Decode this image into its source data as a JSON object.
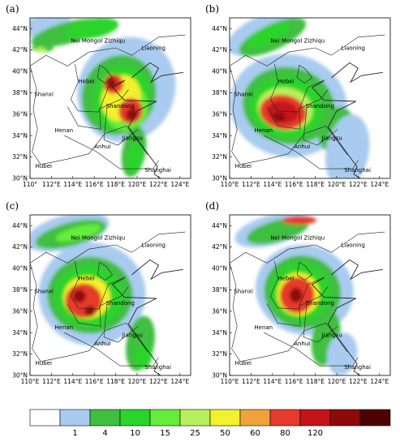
{
  "panels": [
    {
      "label": "(a)",
      "x_ticks": [
        "110°",
        "112°E",
        "114°E",
        "116°E",
        "118°E",
        "120°E",
        "122°E",
        "124°E"
      ]
    },
    {
      "label": "(b)",
      "x_ticks": [
        "110°E",
        "112°E",
        "114°E",
        "116°E",
        "118°E",
        "120°E",
        "122°E",
        "124°E"
      ]
    },
    {
      "label": "(c)",
      "x_ticks": [
        "110°E",
        "112°E",
        "114°E",
        "116°E",
        "118°E",
        "120°E",
        "122°E",
        "124°E"
      ]
    },
    {
      "label": "(d)",
      "x_ticks": [
        "110°E",
        "112°E",
        "114°E",
        "116°E",
        "118°E",
        "120°E",
        "122°E",
        "124°E"
      ]
    }
  ],
  "y_ticks": [
    "30°N",
    "32°N",
    "34°N",
    "36°N",
    "38°N",
    "40°N",
    "42°N",
    "44°N"
  ],
  "regions": {
    "nei_mongol": "Nei Mongol Zizhiqu",
    "liaoning": "Liaoning",
    "hebei": "Hebei",
    "shanxi": "Shanxi",
    "shandong": "Shandong",
    "henan": "Henan",
    "jiangsu": "Jiangsu",
    "anhui": "Anhui",
    "hubei": "Hubei",
    "shanghai": "Shanghai"
  },
  "colorbar": {
    "labels": [
      "1",
      "4",
      "10",
      "15",
      "25",
      "50",
      "60",
      "80",
      "120"
    ],
    "colors": [
      "#ffffff",
      "#a9cbef",
      "#3fbf3f",
      "#2ad42a",
      "#66ec3a",
      "#b7f05c",
      "#f1f12f",
      "#f0a23a",
      "#e63a2c",
      "#c4141a",
      "#8e0a0a",
      "#4d0202"
    ]
  },
  "colors": {
    "land": "#ffffff",
    "border": "#222222"
  }
}
